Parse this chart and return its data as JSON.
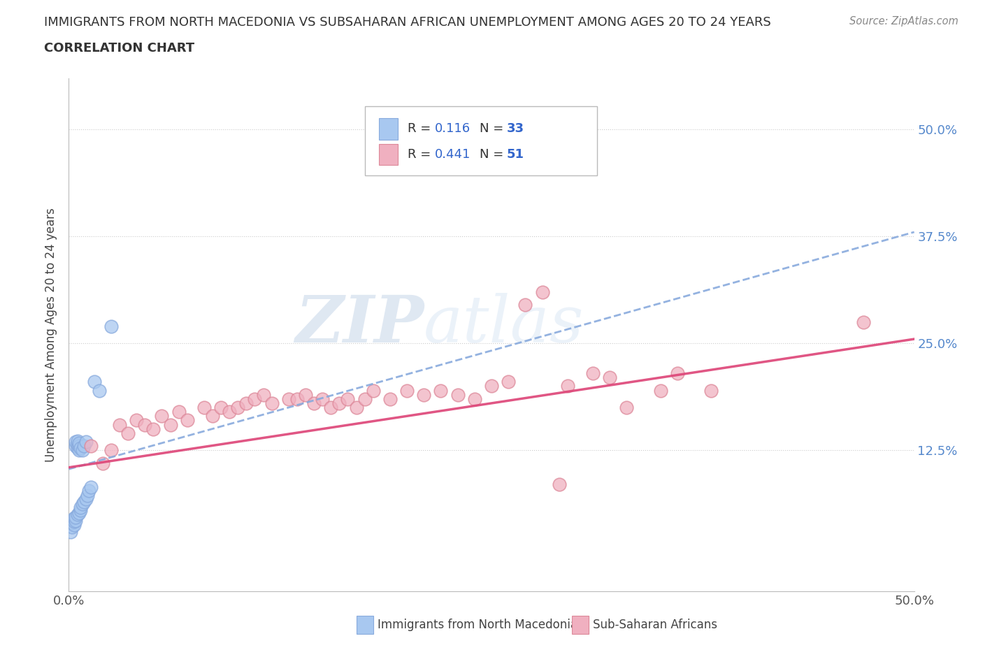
{
  "title_line1": "IMMIGRANTS FROM NORTH MACEDONIA VS SUBSAHARAN AFRICAN UNEMPLOYMENT AMONG AGES 20 TO 24 YEARS",
  "title_line2": "CORRELATION CHART",
  "source_text": "Source: ZipAtlas.com",
  "ylabel": "Unemployment Among Ages 20 to 24 years",
  "xlim": [
    0.0,
    0.5
  ],
  "ylim": [
    -0.04,
    0.56
  ],
  "xtick_positions": [
    0.0,
    0.5
  ],
  "xtick_labels": [
    "0.0%",
    "50.0%"
  ],
  "ytick_positions": [
    0.125,
    0.25,
    0.375,
    0.5
  ],
  "ytick_labels": [
    "12.5%",
    "25.0%",
    "37.5%",
    "50.0%"
  ],
  "legend_blue_label": "Immigrants from North Macedonia",
  "legend_pink_label": "Sub-Saharan Africans",
  "R_blue": "0.116",
  "N_blue": "33",
  "R_pink": "0.441",
  "N_pink": "51",
  "blue_color": "#a8c8f0",
  "blue_edge_color": "#88aadd",
  "pink_color": "#f0b0c0",
  "pink_edge_color": "#dd8899",
  "blue_line_color": "#3366bb",
  "pink_line_color": "#dd4477",
  "blue_dashed_color": "#88aadd",
  "watermark_color": "#d0dff0",
  "title_color": "#333333",
  "source_color": "#888888",
  "tick_color": "#555555",
  "right_tick_color": "#5588cc",
  "grid_color": "#cccccc",
  "blue_scatter_x": [
    0.001,
    0.002,
    0.002,
    0.003,
    0.003,
    0.003,
    0.004,
    0.004,
    0.004,
    0.004,
    0.005,
    0.005,
    0.005,
    0.005,
    0.006,
    0.006,
    0.006,
    0.006,
    0.007,
    0.007,
    0.007,
    0.008,
    0.008,
    0.009,
    0.009,
    0.01,
    0.01,
    0.011,
    0.012,
    0.013,
    0.015,
    0.018,
    0.025
  ],
  "blue_scatter_y": [
    0.03,
    0.035,
    0.04,
    0.038,
    0.042,
    0.046,
    0.043,
    0.047,
    0.13,
    0.135,
    0.128,
    0.132,
    0.136,
    0.05,
    0.125,
    0.13,
    0.133,
    0.052,
    0.128,
    0.055,
    0.058,
    0.125,
    0.062,
    0.065,
    0.13,
    0.135,
    0.068,
    0.072,
    0.078,
    0.082,
    0.205,
    0.195,
    0.27
  ],
  "pink_scatter_x": [
    0.013,
    0.02,
    0.025,
    0.03,
    0.035,
    0.04,
    0.045,
    0.05,
    0.055,
    0.06,
    0.065,
    0.07,
    0.08,
    0.085,
    0.09,
    0.095,
    0.1,
    0.105,
    0.11,
    0.115,
    0.12,
    0.13,
    0.135,
    0.14,
    0.145,
    0.15,
    0.155,
    0.16,
    0.165,
    0.17,
    0.175,
    0.18,
    0.19,
    0.2,
    0.21,
    0.22,
    0.23,
    0.24,
    0.25,
    0.26,
    0.27,
    0.28,
    0.295,
    0.31,
    0.32,
    0.33,
    0.35,
    0.36,
    0.38,
    0.47,
    0.29
  ],
  "pink_scatter_y": [
    0.13,
    0.11,
    0.125,
    0.155,
    0.145,
    0.16,
    0.155,
    0.15,
    0.165,
    0.155,
    0.17,
    0.16,
    0.175,
    0.165,
    0.175,
    0.17,
    0.175,
    0.18,
    0.185,
    0.19,
    0.18,
    0.185,
    0.185,
    0.19,
    0.18,
    0.185,
    0.175,
    0.18,
    0.185,
    0.175,
    0.185,
    0.195,
    0.185,
    0.195,
    0.19,
    0.195,
    0.19,
    0.185,
    0.2,
    0.205,
    0.295,
    0.31,
    0.2,
    0.215,
    0.21,
    0.175,
    0.195,
    0.215,
    0.195,
    0.275,
    0.085
  ],
  "blue_line_x": [
    0.0,
    0.5
  ],
  "blue_line_y": [
    0.103,
    0.38
  ],
  "pink_line_x": [
    0.0,
    0.5
  ],
  "pink_line_y": [
    0.105,
    0.255
  ]
}
